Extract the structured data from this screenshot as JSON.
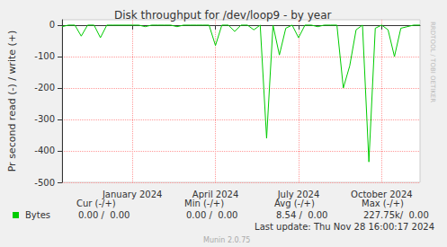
{
  "chart_data": {
    "type": "line",
    "title": "Disk throughput for /dev/loop9 - by year",
    "y_label": "Pr second read (-) / write (+)",
    "categories": [
      null,
      null,
      null,
      null,
      null,
      null,
      null,
      null,
      null,
      null,
      null,
      "January 2024",
      null,
      null,
      null,
      null,
      null,
      null,
      null,
      null,
      null,
      null,
      null,
      null,
      "April 2024",
      null,
      null,
      null,
      null,
      null,
      null,
      null,
      null,
      null,
      null,
      null,
      null,
      "July 2024",
      null,
      null,
      null,
      null,
      null,
      null,
      null,
      null,
      null,
      null,
      null,
      null,
      "October 2024",
      null,
      null,
      null,
      null,
      null,
      null
    ],
    "series": [
      {
        "name": "Bytes",
        "color": "#00cc00",
        "values": [
          -5,
          0,
          0,
          -35,
          0,
          0,
          -40,
          0,
          0,
          0,
          0,
          0,
          0,
          -5,
          0,
          0,
          0,
          0,
          -5,
          0,
          0,
          0,
          0,
          0,
          -65,
          0,
          0,
          -20,
          0,
          0,
          -15,
          0,
          -360,
          0,
          -95,
          -10,
          0,
          -40,
          0,
          0,
          -5,
          0,
          0,
          0,
          -200,
          -130,
          -15,
          0,
          -435,
          -10,
          0,
          -15,
          -100,
          -10,
          -5,
          0,
          0
        ]
      }
    ],
    "ylim": [
      -500,
      17
    ],
    "yticks": [
      -500,
      -400,
      -300,
      -200,
      -100,
      0
    ],
    "grid": true,
    "stats": {
      "columns": [
        "Cur (-/+)",
        "Min (-/+)",
        "Avg (-/+)",
        "Max (-/+)"
      ],
      "rows": [
        {
          "name": "Bytes",
          "values": [
            "0.00 /  0.00",
            "0.00 /  0.00",
            "8.54 /  0.00",
            "227.75k/  0.00"
          ]
        }
      ]
    },
    "last_update": "Last update: Thu Nov 28 16:00:17 2024",
    "footer": "Munin 2.0.75",
    "side_note": "RRDTOOL / TOBI OETIKER"
  }
}
